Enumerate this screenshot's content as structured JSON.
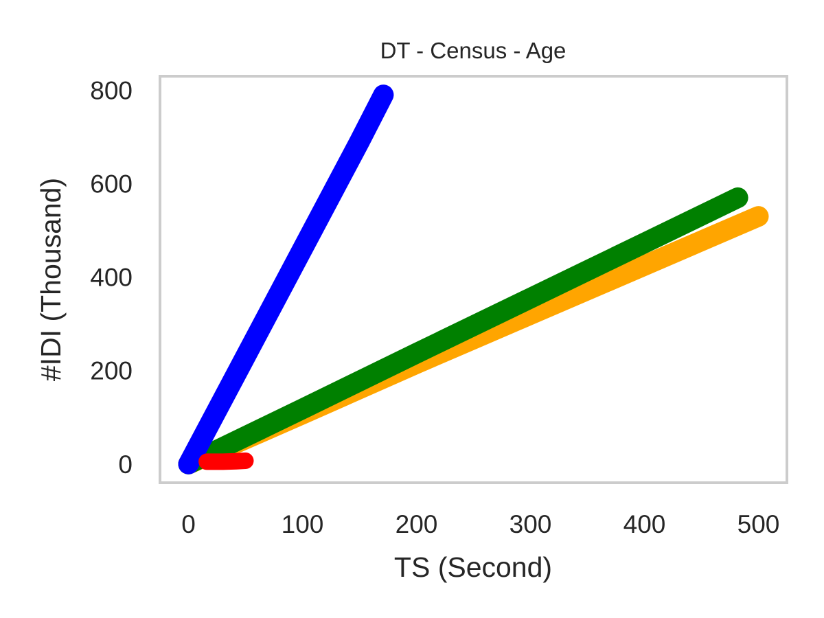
{
  "chart_data": {
    "type": "line",
    "title": "DT - Census - Age",
    "xlabel": "TS (Second)",
    "ylabel": "#IDI (Thousand)",
    "xlim": [
      -25,
      525
    ],
    "ylim": [
      -40,
      830
    ],
    "xticks": [
      "0",
      "100",
      "200",
      "300",
      "400",
      "500"
    ],
    "yticks": [
      "0",
      "200",
      "400",
      "600",
      "800"
    ],
    "grid": false,
    "legend": "none",
    "series": [
      {
        "color": "#ffa500",
        "x": [
          0,
          100,
          200,
          300,
          400,
          500
        ],
        "y": [
          0,
          107,
          215,
          320,
          425,
          530
        ]
      },
      {
        "color": "#008000",
        "x": [
          0,
          100,
          200,
          300,
          400,
          482
        ],
        "y": [
          0,
          118,
          237,
          355,
          473,
          570
        ]
      },
      {
        "color": "#0000ff",
        "x": [
          0,
          50,
          100,
          150,
          171
        ],
        "y": [
          0,
          230,
          460,
          690,
          790
        ]
      },
      {
        "color": "#ff0000",
        "x": [
          16,
          30,
          42,
          50
        ],
        "y": [
          5,
          5,
          6,
          7
        ]
      }
    ]
  }
}
